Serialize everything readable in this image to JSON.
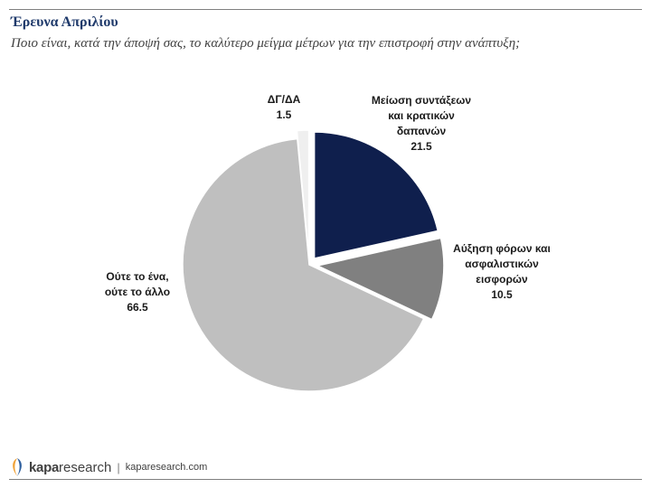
{
  "header": {
    "title": "Έρευνα Απριλίου",
    "subtitle": "Ποιο είναι, κατά την άποψή σας, το καλύτερο μείγμα μέτρων για την επιστροφή στην ανάπτυξη;"
  },
  "chart_data": {
    "type": "pie",
    "title": "",
    "slices": [
      {
        "label_lines": [
          "Μείωση συντάξεων",
          "και κρατικών",
          "δαπανών"
        ],
        "value": 21.5,
        "value_label": "21.5",
        "color": "#0f1f4d",
        "exploded": true
      },
      {
        "label_lines": [
          "Αύξηση φόρων και",
          "ασφαλιστικών",
          "εισφορών"
        ],
        "value": 10.5,
        "value_label": "10.5",
        "color": "#808080",
        "exploded": true
      },
      {
        "label_lines": [
          "Ούτε το ένα,",
          "ούτε το άλλο"
        ],
        "value": 66.5,
        "value_label": "66.5",
        "color": "#bfbfbf",
        "exploded": false
      },
      {
        "label_lines": [
          "ΔΓ/ΔΑ"
        ],
        "value": 1.5,
        "value_label": "1.5",
        "color": "#efefef",
        "exploded": true
      }
    ]
  },
  "footer": {
    "brand_bold": "kapa",
    "brand_light": "research",
    "separator": "|",
    "site": "kaparesearch.com"
  },
  "colors": {
    "title": "#1f3a6b",
    "logo_orange": "#f0a33a",
    "logo_blue": "#2e5f9e"
  }
}
